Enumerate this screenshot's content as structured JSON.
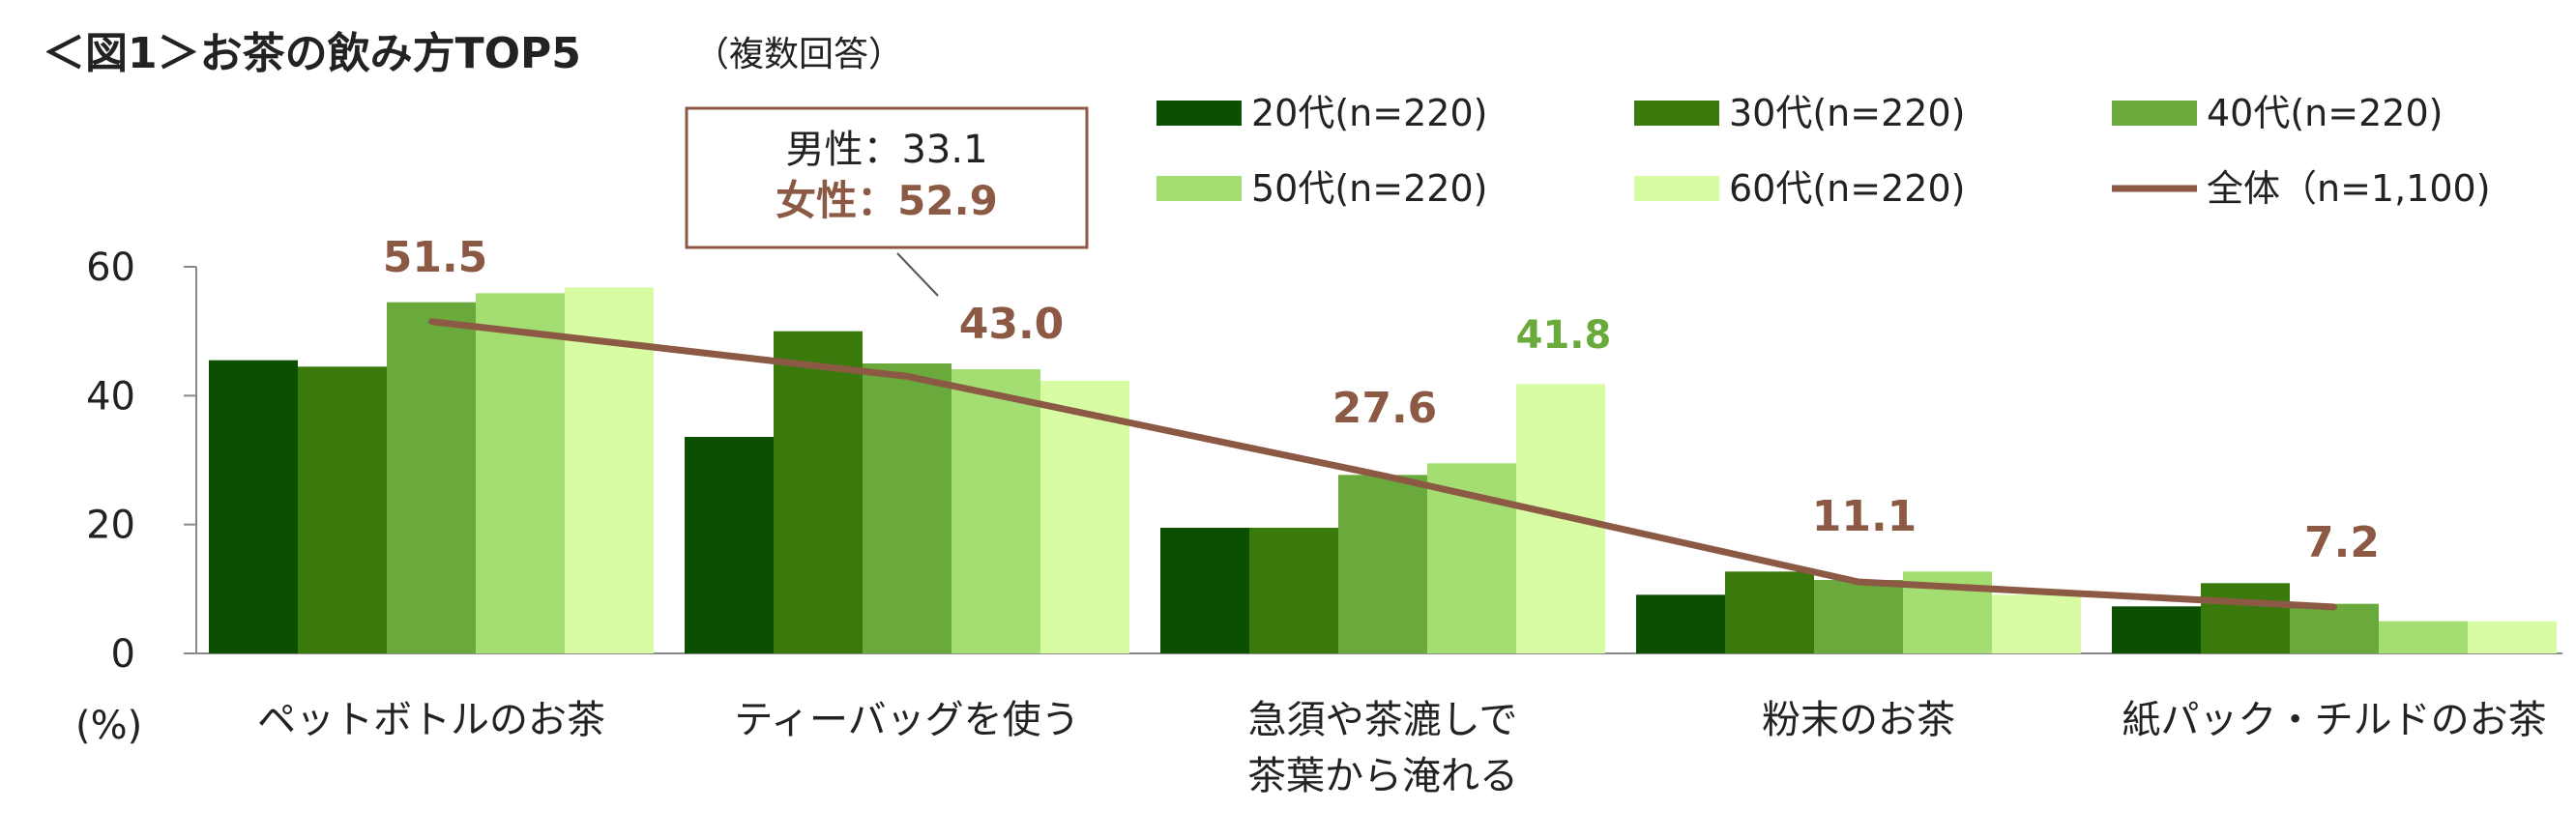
{
  "title": "＜図1＞お茶の飲み方TOP5",
  "title_note": "（複数回答）",
  "callout": {
    "male": "男性：33.1",
    "female": "女性：52.9"
  },
  "colors": {
    "s20": "#0d4f00",
    "s30": "#3a7a0d",
    "s40": "#6aa93c",
    "s50": "#a4dd72",
    "s60": "#d7fca3",
    "total": "#8c5a44",
    "label_green": "#6aa93c",
    "axis": "#888888",
    "text": "#222222"
  },
  "chart_data": {
    "type": "bar",
    "categories": [
      [
        "ペットボトルのお茶"
      ],
      [
        "ティーバッグを使う"
      ],
      [
        "急須や茶漉しで",
        "茶葉から淹れる"
      ],
      [
        "粉末のお茶"
      ],
      [
        "紙パック・チルドのお茶"
      ]
    ],
    "series": [
      {
        "name": "20代(n=220)",
        "values": [
          45.5,
          33.6,
          19.5,
          9.1,
          7.3
        ]
      },
      {
        "name": "30代(n=220)",
        "values": [
          44.5,
          50.0,
          19.5,
          12.7,
          10.9
        ]
      },
      {
        "name": "40代(n=220)",
        "values": [
          54.5,
          45.0,
          27.7,
          11.4,
          7.7
        ]
      },
      {
        "name": "50代(n=220)",
        "values": [
          55.9,
          44.1,
          29.5,
          12.7,
          5.0
        ]
      },
      {
        "name": "60代(n=220)",
        "values": [
          56.8,
          42.3,
          41.8,
          9.1,
          5.0
        ]
      }
    ],
    "line": {
      "name": "全体（n=1,100)",
      "values": [
        51.5,
        43.0,
        27.6,
        11.1,
        7.2
      ]
    },
    "data_labels": [
      "51.5",
      "43.0",
      "27.6",
      "11.1",
      "7.2"
    ],
    "extra_label": "41.8",
    "yticks": [
      "0",
      "20",
      "40",
      "60"
    ],
    "ylim": [
      0,
      60
    ],
    "ylabel": "(%)",
    "legend_position": "top-right"
  }
}
